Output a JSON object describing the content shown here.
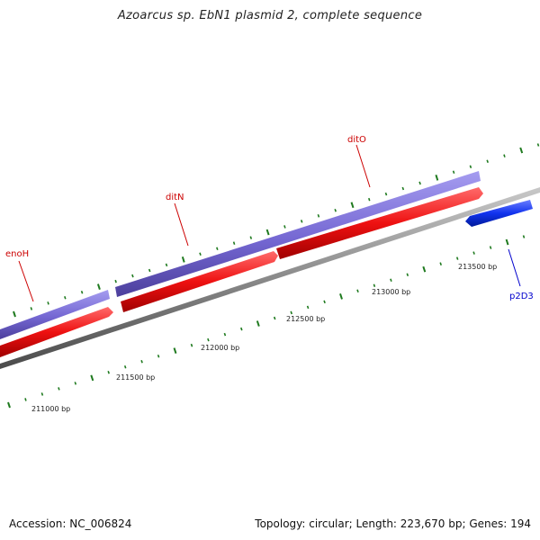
{
  "map": {
    "title": "Azoarcus sp. EbN1 plasmid 2, complete sequence",
    "accession": "Accession: NC_006824",
    "summary": "Topology: circular; Length: 223,670 bp; Genes: 194"
  },
  "features": [
    {
      "label": "enoH",
      "color": "#cc0000"
    },
    {
      "label": "ditN",
      "color": "#cc0000"
    },
    {
      "label": "ditO",
      "color": "#cc0000"
    },
    {
      "label": "p2D3",
      "color": "#0000cc"
    }
  ],
  "scale_labels": [
    "211000 bp",
    "211500 bp",
    "212000 bp",
    "212500 bp",
    "213000 bp",
    "213500 bp"
  ],
  "colors": {
    "backbone": "#8a8a8a",
    "forward_feature": "#7b6fd6",
    "cds": "#ee1111",
    "reverse_feature": "#1133ee",
    "ticks": "#1f7a1f"
  }
}
